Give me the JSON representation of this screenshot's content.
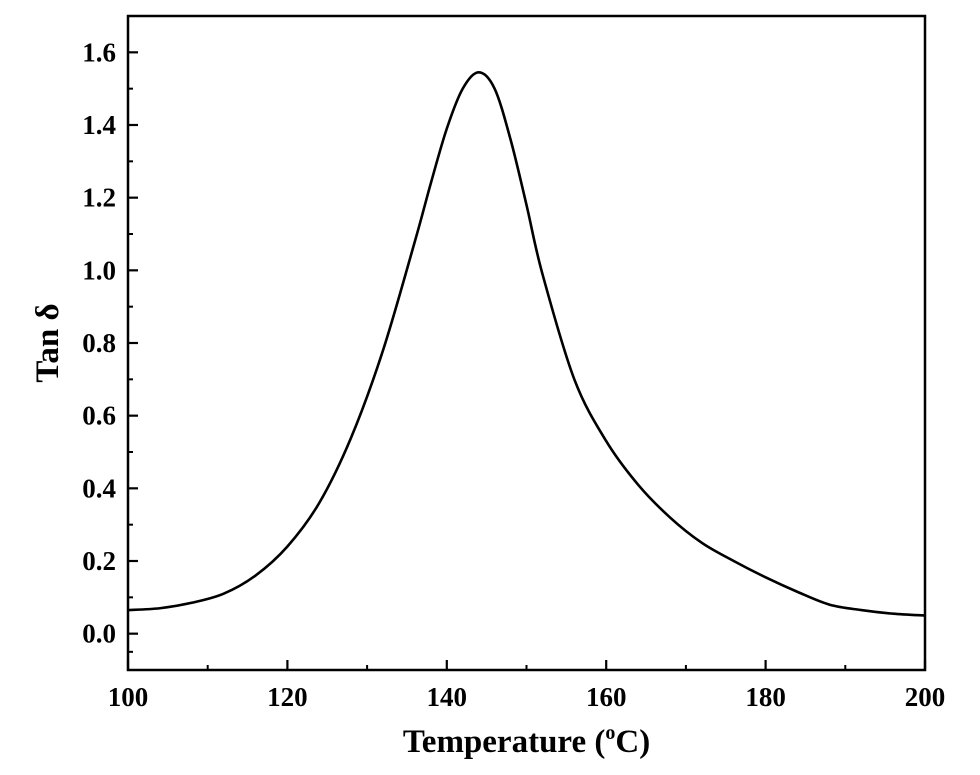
{
  "chart_data": {
    "type": "line",
    "xlabel": "Temperature (",
    "xlabel_sup": "o",
    "xlabel_end": "C)",
    "ylabel": "Tan δ",
    "xlim": [
      100,
      200
    ],
    "ylim": [
      -0.1,
      1.7
    ],
    "x_ticks": [
      100,
      120,
      140,
      160,
      180,
      200
    ],
    "x_tick_labels": [
      "100",
      "120",
      "140",
      "160",
      "180",
      "200"
    ],
    "y_ticks": [
      0.0,
      0.2,
      0.4,
      0.6,
      0.8,
      1.0,
      1.2,
      1.4,
      1.6
    ],
    "y_tick_labels": [
      "0.0",
      "0.2",
      "0.4",
      "0.6",
      "0.8",
      "1.0",
      "1.2",
      "1.4",
      "1.6"
    ],
    "grid": false,
    "line_color": "#000000",
    "series": [
      {
        "x": [
          100,
          104,
          108,
          112,
          116,
          120,
          124,
          128,
          132,
          136,
          138,
          140,
          142,
          144,
          146,
          148,
          150,
          152,
          156,
          160,
          164,
          168,
          172,
          176,
          180,
          184,
          188,
          192,
          196,
          200
        ],
        "values": [
          0.065,
          0.07,
          0.085,
          0.11,
          0.16,
          0.24,
          0.36,
          0.54,
          0.78,
          1.08,
          1.24,
          1.39,
          1.5,
          1.545,
          1.5,
          1.36,
          1.18,
          0.99,
          0.7,
          0.53,
          0.41,
          0.32,
          0.25,
          0.2,
          0.155,
          0.115,
          0.08,
          0.065,
          0.055,
          0.05
        ]
      }
    ]
  }
}
